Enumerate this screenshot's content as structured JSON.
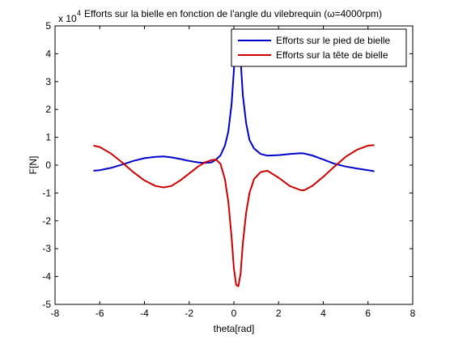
{
  "chart_data": {
    "type": "line",
    "title": "Efforts sur la bielle en fonction de l'angle du vilebrequin (ω=4000rpm)",
    "xlabel": "theta[rad]",
    "ylabel": "F[N]",
    "scale_label": "x 10",
    "scale_exponent": "4",
    "xlim": [
      -8,
      8
    ],
    "ylim": [
      -5,
      5
    ],
    "xticks": [
      -8,
      -6,
      -4,
      -2,
      0,
      2,
      4,
      6,
      8
    ],
    "yticks": [
      -5,
      -4,
      -3,
      -2,
      -1,
      0,
      1,
      2,
      3,
      4,
      5
    ],
    "grid": false,
    "legend_position": "top-right",
    "series": [
      {
        "name": "Efforts sur le pied de bielle",
        "color": "#0000cc",
        "x": [
          -6.28,
          -6.0,
          -5.5,
          -5.0,
          -4.5,
          -4.0,
          -3.5,
          -3.14,
          -2.8,
          -2.4,
          -2.0,
          -1.6,
          -1.3,
          -1.0,
          -0.8,
          -0.6,
          -0.4,
          -0.25,
          -0.1,
          0.0,
          0.1,
          0.2,
          0.3,
          0.4,
          0.55,
          0.7,
          0.9,
          1.2,
          1.5,
          2.0,
          2.5,
          3.0,
          3.14,
          3.5,
          4.0,
          4.5,
          5.0,
          5.5,
          6.0,
          6.28
        ],
        "y": [
          -0.2,
          -0.18,
          -0.1,
          0.02,
          0.15,
          0.25,
          0.3,
          0.31,
          0.28,
          0.22,
          0.15,
          0.1,
          0.08,
          0.1,
          0.2,
          0.35,
          0.7,
          1.2,
          2.2,
          3.4,
          4.6,
          4.85,
          3.8,
          2.5,
          1.5,
          0.9,
          0.6,
          0.4,
          0.34,
          0.36,
          0.4,
          0.43,
          0.42,
          0.35,
          0.2,
          0.05,
          -0.05,
          -0.12,
          -0.18,
          -0.22
        ]
      },
      {
        "name": "Efforts sur la tête de bielle",
        "color": "#cc0000",
        "x": [
          -6.28,
          -6.0,
          -5.5,
          -5.0,
          -4.5,
          -4.0,
          -3.5,
          -3.14,
          -2.8,
          -2.4,
          -2.0,
          -1.6,
          -1.3,
          -1.0,
          -0.8,
          -0.6,
          -0.4,
          -0.25,
          -0.1,
          0.0,
          0.1,
          0.2,
          0.3,
          0.4,
          0.55,
          0.7,
          0.9,
          1.2,
          1.5,
          2.0,
          2.5,
          3.0,
          3.14,
          3.5,
          4.0,
          4.5,
          5.0,
          5.5,
          6.0,
          6.28
        ],
        "y": [
          0.7,
          0.65,
          0.42,
          0.1,
          -0.25,
          -0.55,
          -0.75,
          -0.8,
          -0.75,
          -0.55,
          -0.3,
          -0.05,
          0.1,
          0.18,
          0.2,
          0.05,
          -0.5,
          -1.3,
          -2.6,
          -3.7,
          -4.3,
          -4.35,
          -3.9,
          -2.8,
          -1.7,
          -1.0,
          -0.5,
          -0.25,
          -0.2,
          -0.45,
          -0.75,
          -0.9,
          -0.9,
          -0.75,
          -0.42,
          -0.05,
          0.3,
          0.55,
          0.7,
          0.72
        ]
      }
    ]
  }
}
